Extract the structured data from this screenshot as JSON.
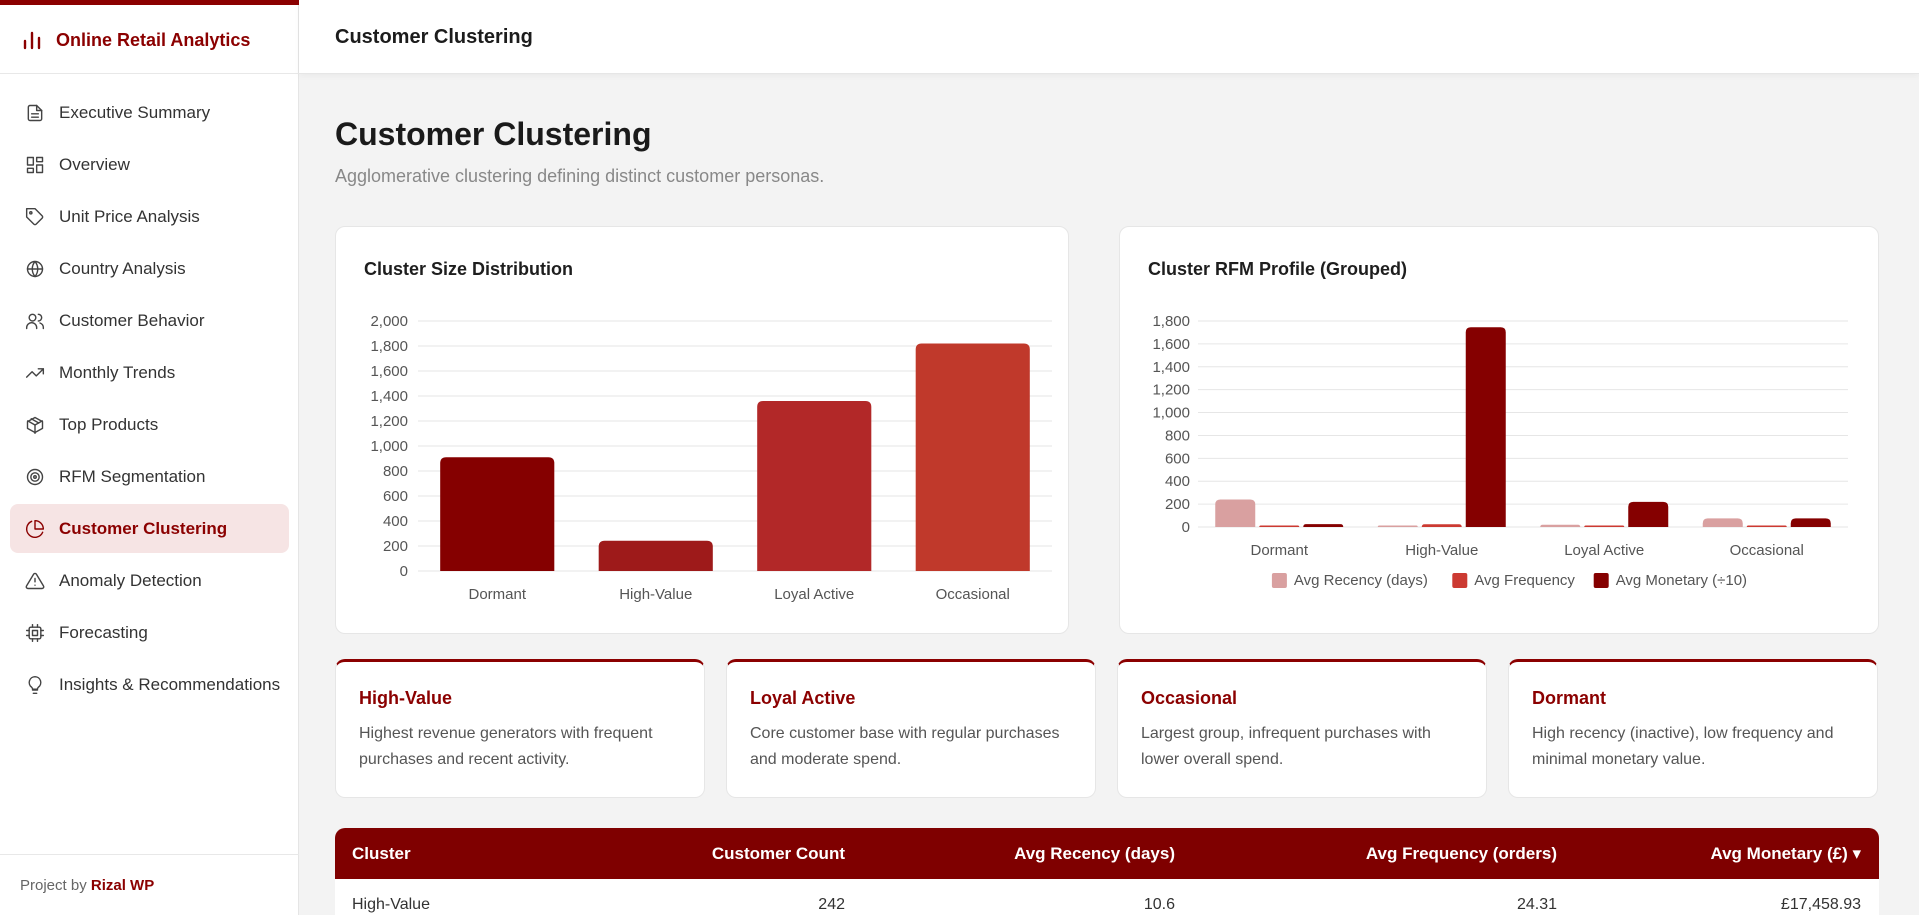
{
  "brand": {
    "title": "Online Retail Analytics",
    "icon": "bar-chart-icon"
  },
  "sidebar": {
    "items": [
      {
        "label": "Executive Summary",
        "icon": "document-icon",
        "active": false
      },
      {
        "label": "Overview",
        "icon": "dashboard-icon",
        "active": false
      },
      {
        "label": "Unit Price Analysis",
        "icon": "tag-icon",
        "active": false
      },
      {
        "label": "Country Analysis",
        "icon": "globe-icon",
        "active": false
      },
      {
        "label": "Customer Behavior",
        "icon": "users-icon",
        "active": false
      },
      {
        "label": "Monthly Trends",
        "icon": "trending-up-icon",
        "active": false
      },
      {
        "label": "Top Products",
        "icon": "package-icon",
        "active": false
      },
      {
        "label": "RFM Segmentation",
        "icon": "target-icon",
        "active": false
      },
      {
        "label": "Customer Clustering",
        "icon": "pie-chart-icon",
        "active": true
      },
      {
        "label": "Anomaly Detection",
        "icon": "warning-icon",
        "active": false
      },
      {
        "label": "Forecasting",
        "icon": "cpu-icon",
        "active": false
      },
      {
        "label": "Insights & Recommendations",
        "icon": "lightbulb-icon",
        "active": false
      }
    ],
    "footer_prefix": "Project by",
    "footer_author": "Rizal WP"
  },
  "header": {
    "title": "Customer Clustering"
  },
  "page": {
    "title": "Customer Clustering",
    "subtitle": "Agglomerative clustering defining distinct customer personas."
  },
  "colors": {
    "accent": "#8b0000",
    "bar_dormant": "#850000",
    "bar_high_value": "#9e1a1a",
    "bar_loyal_active": "#b22828",
    "bar_occasional": "#c0392b",
    "recency": "#d9a0a0",
    "frequency": "#cc3a32",
    "monetary": "#850000"
  },
  "chart_data": [
    {
      "type": "bar",
      "title": "Cluster Size Distribution",
      "categories": [
        "Dormant",
        "High-Value",
        "Loyal Active",
        "Occasional"
      ],
      "values": [
        910,
        242,
        1360,
        1820
      ],
      "ylim": [
        0,
        2000
      ],
      "yticks": [
        "0",
        "200",
        "400",
        "600",
        "800",
        "1,000",
        "1,200",
        "1,400",
        "1,600",
        "1,800",
        "2,000"
      ],
      "grid": true
    },
    {
      "type": "bar",
      "title": "Cluster RFM Profile (Grouped)",
      "categories": [
        "Dormant",
        "High-Value",
        "Loyal Active",
        "Occasional"
      ],
      "series": [
        {
          "name": "Avg Recency (days)",
          "values": [
            240,
            10.6,
            20,
            75
          ]
        },
        {
          "name": "Avg Frequency",
          "values": [
            5,
            24.31,
            8,
            3
          ]
        },
        {
          "name": "Avg Monetary (÷10)",
          "values": [
            25,
            1745.89,
            220,
            75
          ]
        }
      ],
      "ylim": [
        0,
        1800
      ],
      "yticks": [
        "0",
        "200",
        "400",
        "600",
        "800",
        "1,000",
        "1,200",
        "1,400",
        "1,600",
        "1,800"
      ],
      "legend": "bottom",
      "grid": true
    }
  ],
  "personas": [
    {
      "name": "High-Value",
      "desc": "Highest revenue generators with frequent purchases and recent activity."
    },
    {
      "name": "Loyal Active",
      "desc": "Core customer base with regular purchases and moderate spend."
    },
    {
      "name": "Occasional",
      "desc": "Largest group, infrequent purchases with lower overall spend."
    },
    {
      "name": "Dormant",
      "desc": "High recency (inactive), low frequency and minimal monetary value."
    }
  ],
  "table": {
    "headers": [
      "Cluster",
      "Customer Count",
      "Avg Recency (days)",
      "Avg Frequency (orders)",
      "Avg Monetary (£) ▾"
    ],
    "rows": [
      [
        "High-Value",
        "242",
        "10.6",
        "24.31",
        "£17,458.93"
      ]
    ]
  }
}
